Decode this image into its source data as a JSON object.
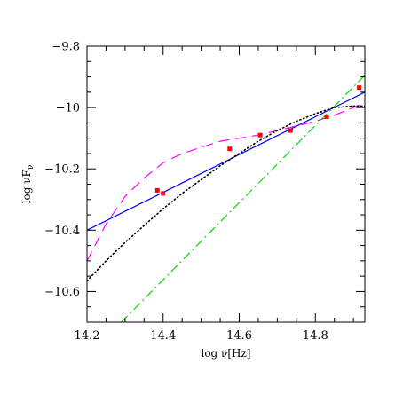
{
  "chart_data": {
    "type": "line",
    "xlabel": "log ν[Hz]",
    "ylabel": "log νF",
    "ylabel_subscript": "ν",
    "xlim": [
      14.2,
      14.93
    ],
    "ylim": [
      -10.7,
      -9.8
    ],
    "xticks_major": [
      14.2,
      14.4,
      14.6,
      14.8
    ],
    "xtick_labels": [
      "14.2",
      "14.4",
      "14.6",
      "14.8"
    ],
    "yticks_major": [
      -10.6,
      -10.4,
      -10.2,
      -10.0,
      -9.8
    ],
    "ytick_labels": [
      "−10.6",
      "−10.4",
      "−10.2",
      "−10",
      "−9.8"
    ],
    "grid": false,
    "series": [
      {
        "style": "solid",
        "color": "#0000ff",
        "x": [
          14.2,
          14.93
        ],
        "y": [
          -10.4,
          -9.95
        ]
      },
      {
        "style": "dashed",
        "color": "#ff00ff",
        "x": [
          14.2,
          14.25,
          14.3,
          14.35,
          14.4,
          14.45,
          14.5,
          14.55,
          14.6,
          14.65,
          14.7,
          14.75,
          14.8,
          14.85,
          14.9,
          14.93
        ],
        "y": [
          -10.5,
          -10.38,
          -10.29,
          -10.23,
          -10.18,
          -10.15,
          -10.13,
          -10.11,
          -10.1,
          -10.09,
          -10.075,
          -10.06,
          -10.045,
          -10.025,
          -10.0,
          -9.985
        ]
      },
      {
        "style": "dotted",
        "color": "#000000",
        "x": [
          14.2,
          14.25,
          14.3,
          14.35,
          14.4,
          14.45,
          14.5,
          14.55,
          14.6,
          14.65,
          14.7,
          14.75,
          14.8,
          14.85,
          14.9,
          14.93
        ],
        "y": [
          -10.565,
          -10.5,
          -10.44,
          -10.385,
          -10.33,
          -10.28,
          -10.235,
          -10.19,
          -10.15,
          -10.11,
          -10.075,
          -10.045,
          -10.02,
          -10.0,
          -9.995,
          -9.995
        ]
      },
      {
        "style": "dash-dot",
        "color": "#00dd00",
        "x": [
          14.29,
          14.93
        ],
        "y": [
          -10.7,
          -9.895
        ]
      }
    ],
    "points": {
      "color": "#ff0000",
      "x": [
        14.385,
        14.4,
        14.575,
        14.655,
        14.735,
        14.83,
        14.915
      ],
      "y": [
        -10.27,
        -10.28,
        -10.135,
        -10.09,
        -10.075,
        -10.03,
        -9.935
      ]
    }
  }
}
